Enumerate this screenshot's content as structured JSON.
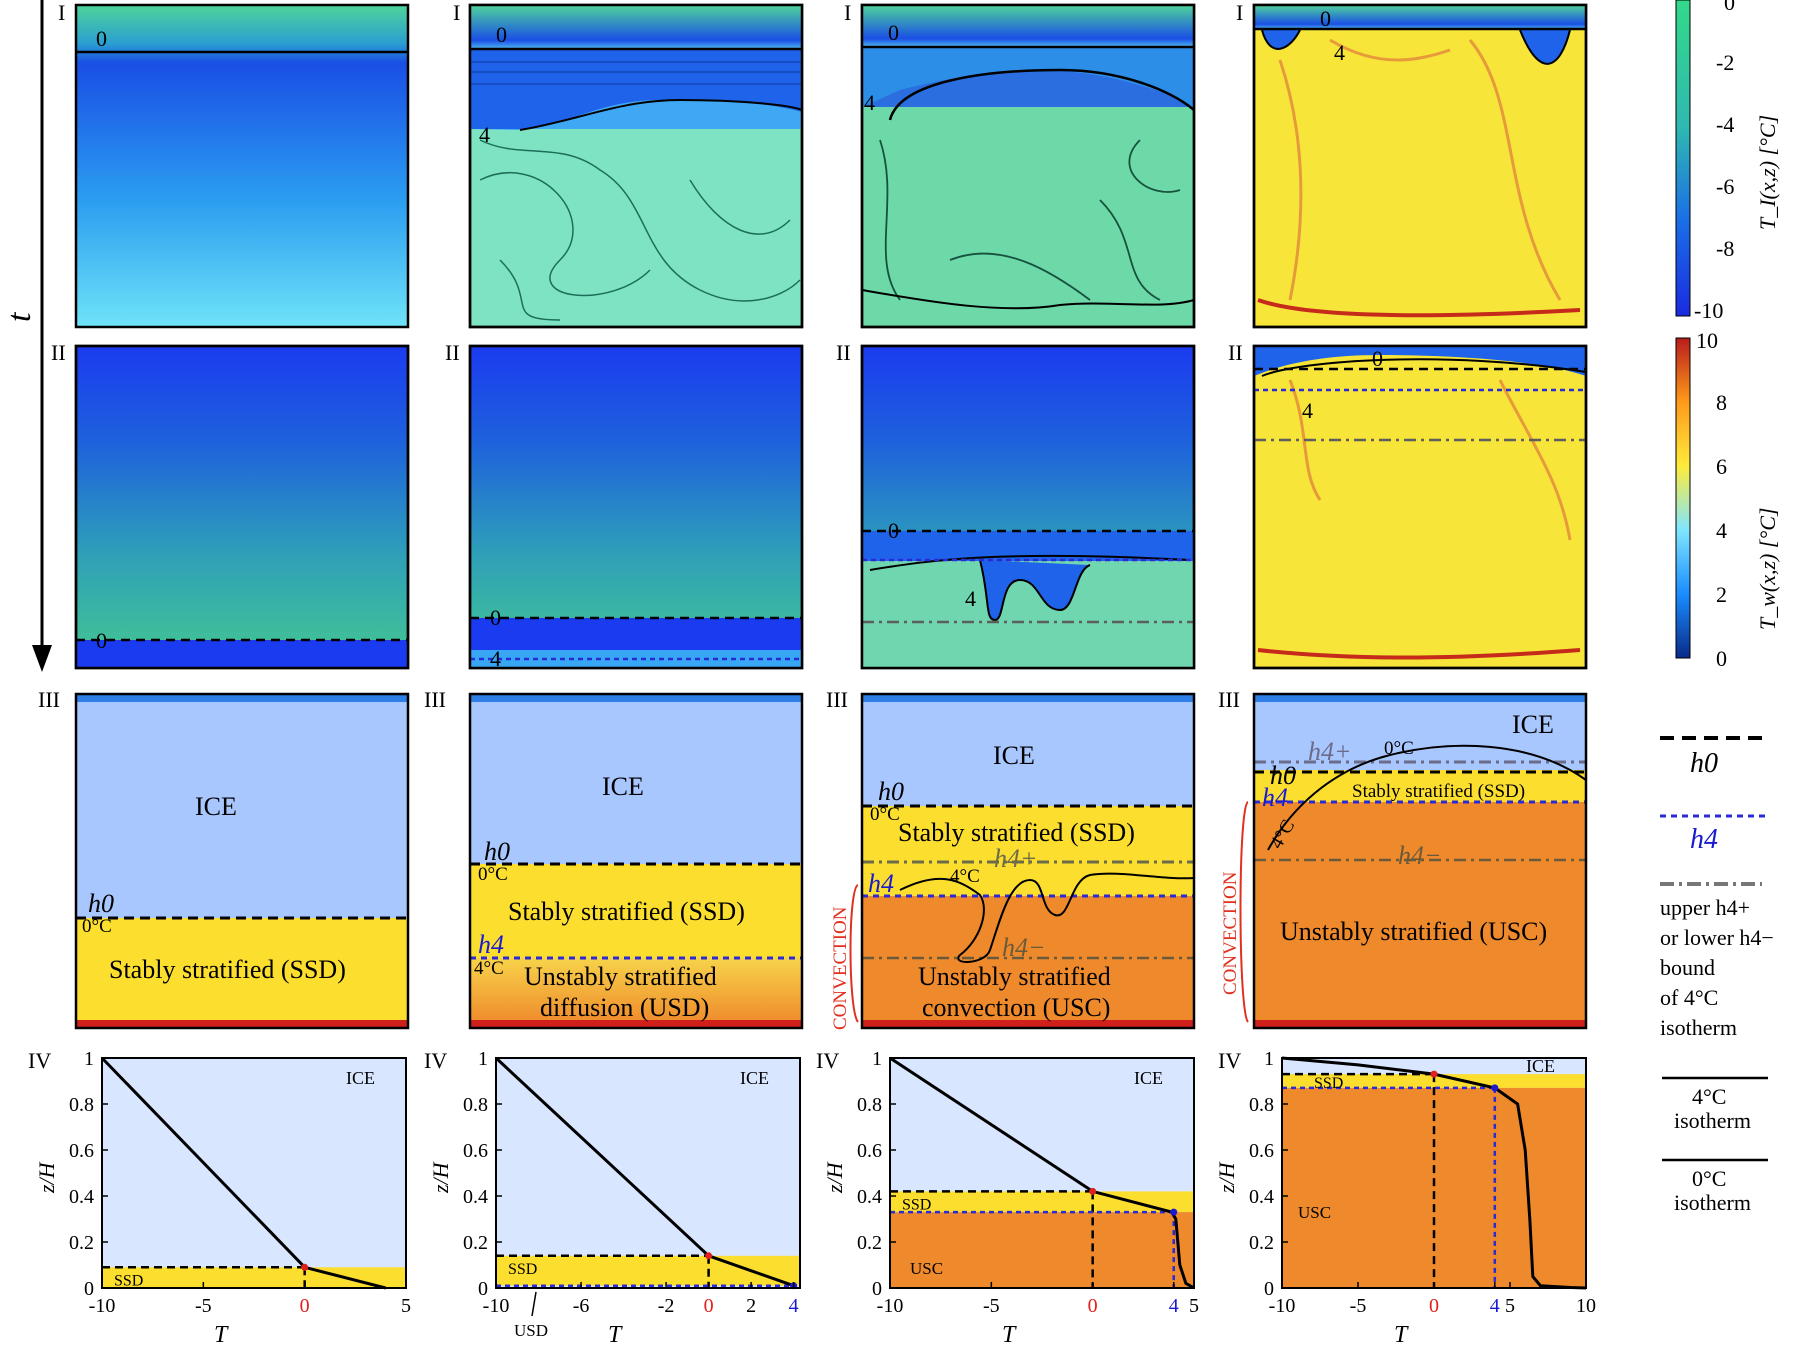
{
  "time_axis_label": "t",
  "row_labels": [
    "I",
    "II",
    "III",
    "IV"
  ],
  "contour_labels": {
    "zero": "0",
    "four": "4"
  },
  "colorbars": {
    "ice": {
      "label": "T_I(x,z) [°C]",
      "ticks": [
        "0",
        "-2",
        "-4",
        "-6",
        "-8",
        "-10"
      ],
      "colors": [
        "#1a2be0",
        "#1a6ee8",
        "#2fb9b0",
        "#33d98a"
      ]
    },
    "water": {
      "label": "T_w(x,z) [°C]",
      "ticks": [
        "10",
        "8",
        "6",
        "4",
        "2",
        "0"
      ],
      "colors": [
        "#0a2a8a",
        "#1a8cff",
        "#7fe6ff",
        "#ffeb3b",
        "#ff9a1a",
        "#b81c1c"
      ]
    }
  },
  "schematics": [
    {
      "ice": "ICE",
      "h0": "h0",
      "t0": "0°C",
      "layers": [
        "Stably stratified (SSD)"
      ]
    },
    {
      "ice": "ICE",
      "h0": "h0",
      "t0": "0°C",
      "h4": "h4",
      "t4": "4°C",
      "layers": [
        "Stably stratified (SSD)",
        "Unstably stratified",
        "diffusion (USD)"
      ]
    },
    {
      "ice": "ICE",
      "h0": "h0",
      "t0": "0°C",
      "h4": "h4",
      "t4": "4°C",
      "h4p": "h4+",
      "h4m": "h4−",
      "convection": "CONVECTION",
      "layers": [
        "Stably stratified (SSD)",
        "Unstably stratified",
        "convection (USC)"
      ]
    },
    {
      "ice": "ICE",
      "h0": "h0",
      "t0": "0°C",
      "h4": "h4",
      "t4": "4°C",
      "h4p": "h4+",
      "h4m": "h4−",
      "convection": "CONVECTION",
      "layers": [
        "Stably stratified (SSD)",
        "Unstably stratified (USC)"
      ]
    }
  ],
  "profile_plots": {
    "ylabel": "z/H",
    "xlabel": "T",
    "yticks": [
      "1",
      "0.8",
      "0.6",
      "0.4",
      "0.2",
      "0"
    ],
    "panels": [
      {
        "xticks": [
          "-10",
          "-5",
          "0",
          "5"
        ],
        "xticks_color": [
          "#000",
          "#000",
          "#e0201c",
          "#000"
        ],
        "region_labels": [
          "ICE",
          "SSD"
        ]
      },
      {
        "xticks": [
          "-10",
          "-6",
          "-2",
          "0",
          "2",
          "4"
        ],
        "xticks_color": [
          "#000",
          "#000",
          "#000",
          "#e0201c",
          "#000",
          "#1a1ad0"
        ],
        "region_labels": [
          "ICE",
          "SSD"
        ],
        "extra_label": "USD"
      },
      {
        "xticks": [
          "-10",
          "-5",
          "0",
          "4",
          "5"
        ],
        "xticks_color": [
          "#000",
          "#000",
          "#e0201c",
          "#1a1ad0",
          "#000"
        ],
        "region_labels": [
          "ICE",
          "SSD",
          "USC"
        ]
      },
      {
        "xticks": [
          "-10",
          "-5",
          "0",
          "4",
          "5",
          "10"
        ],
        "xticks_color": [
          "#000",
          "#000",
          "#e0201c",
          "#1a1ad0",
          "#000",
          "#000"
        ],
        "region_labels": [
          "ICE",
          "SSD",
          "USC"
        ]
      }
    ]
  },
  "chart_data": [
    {
      "type": "line",
      "xlabel": "T",
      "ylabel": "z/H",
      "xlim": [
        -10,
        5
      ],
      "ylim": [
        0,
        1
      ],
      "h0": 0.09,
      "series": [
        {
          "x": [
            -10,
            0,
            4
          ],
          "y": [
            1,
            0.09,
            0
          ]
        }
      ]
    },
    {
      "type": "line",
      "xlabel": "T",
      "ylabel": "z/H",
      "xlim": [
        -10,
        4.3
      ],
      "ylim": [
        0,
        1
      ],
      "h0": 0.14,
      "h4": 0.01,
      "series": [
        {
          "x": [
            -10,
            0,
            4
          ],
          "y": [
            1,
            0.14,
            0.01
          ]
        }
      ]
    },
    {
      "type": "line",
      "xlabel": "T",
      "ylabel": "z/H",
      "xlim": [
        -10,
        5
      ],
      "ylim": [
        0,
        1
      ],
      "h0": 0.42,
      "h4": 0.33,
      "series": [
        {
          "x": [
            -10,
            0,
            3.9,
            4.1,
            4.3,
            4.6,
            5
          ],
          "y": [
            1,
            0.42,
            0.33,
            0.3,
            0.1,
            0.02,
            0
          ]
        }
      ]
    },
    {
      "type": "line",
      "xlabel": "T",
      "ylabel": "z/H",
      "xlim": [
        -10,
        10
      ],
      "ylim": [
        0,
        1
      ],
      "h0": 0.93,
      "h4": 0.87,
      "series": [
        {
          "x": [
            -10,
            -5,
            0,
            4,
            5.5,
            6,
            6.3,
            6.5,
            7,
            9,
            10
          ],
          "y": [
            1,
            0.97,
            0.93,
            0.87,
            0.8,
            0.6,
            0.3,
            0.05,
            0.01,
            0.002,
            0
          ]
        }
      ]
    }
  ],
  "legend": {
    "h0": "h0",
    "h4": "h4",
    "bound_text": [
      "upper h4+",
      "or lower h4−",
      "bound",
      "of 4°C",
      "isotherm"
    ],
    "iso4": [
      "4°C",
      "isotherm"
    ],
    "iso0": [
      "0°C",
      "isotherm"
    ]
  }
}
